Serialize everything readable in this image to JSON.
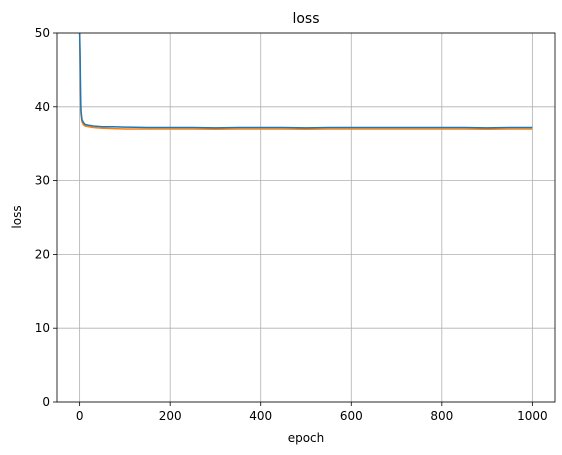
{
  "chart_data": {
    "type": "line",
    "title": "loss",
    "xlabel": "epoch",
    "ylabel": "loss",
    "xlim": [
      -50,
      1050
    ],
    "ylim": [
      0,
      50
    ],
    "xticks": [
      0,
      200,
      400,
      600,
      800,
      1000
    ],
    "yticks": [
      0,
      10,
      20,
      30,
      40,
      50
    ],
    "grid": true,
    "legend": "none",
    "series": [
      {
        "color": "#1f77b4",
        "x": [
          0,
          1,
          2,
          3,
          5,
          8,
          12,
          20,
          30,
          50,
          75,
          100,
          150,
          200,
          250,
          300,
          350,
          400,
          450,
          500,
          550,
          600,
          650,
          700,
          750,
          800,
          850,
          900,
          950,
          1000
        ],
        "y": [
          50,
          47,
          42,
          39.5,
          38.3,
          37.9,
          37.6,
          37.5,
          37.4,
          37.3,
          37.3,
          37.25,
          37.2,
          37.2,
          37.2,
          37.15,
          37.2,
          37.2,
          37.2,
          37.15,
          37.2,
          37.2,
          37.2,
          37.2,
          37.2,
          37.2,
          37.2,
          37.15,
          37.2,
          37.2
        ]
      },
      {
        "color": "#ff7f0e",
        "x": [
          0,
          1,
          2,
          3,
          5,
          8,
          12,
          20,
          30,
          50,
          75,
          100,
          150,
          200,
          250,
          300,
          350,
          400,
          450,
          500,
          550,
          600,
          650,
          700,
          750,
          800,
          850,
          900,
          950,
          1000
        ],
        "y": [
          50,
          46,
          41.5,
          39,
          38,
          37.6,
          37.4,
          37.3,
          37.2,
          37.1,
          37.05,
          37.0,
          37.0,
          37.0,
          37.0,
          36.95,
          37.0,
          37.0,
          37.0,
          36.95,
          37.0,
          37.0,
          37.0,
          37.0,
          37.0,
          37.0,
          37.0,
          36.95,
          37.0,
          37.0
        ]
      }
    ]
  }
}
